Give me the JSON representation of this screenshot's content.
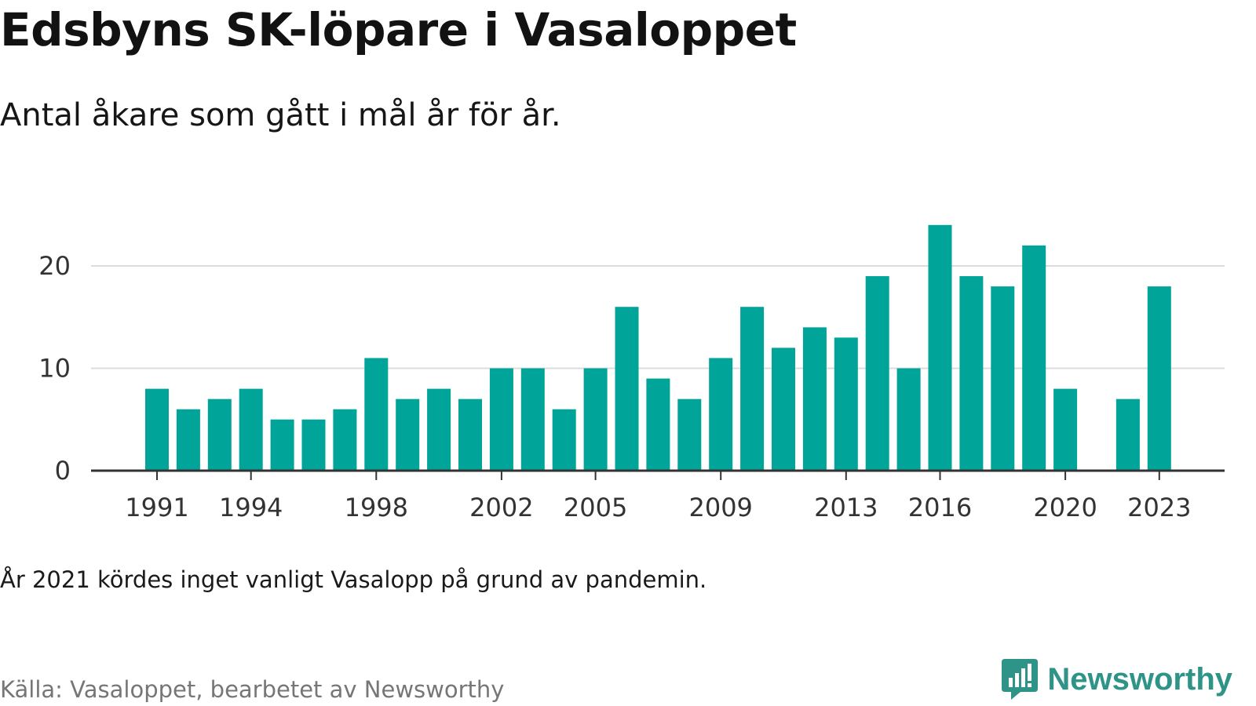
{
  "title": "Edsbyns SK-löpare i Vasaloppet",
  "subtitle": "Antal åkare som gått i mål år för år.",
  "note": "År 2021 kördes inget vanligt Vasalopp på grund av pandemin.",
  "source": "Källa: Vasaloppet, bearbetet av Newsworthy",
  "brand": {
    "name": "Newsworthy",
    "color": "#2f9488",
    "icon": "bar-chart-icon"
  },
  "chart_data": {
    "type": "bar",
    "title": "Edsbyns SK-löpare i Vasaloppet",
    "subtitle": "Antal åkare som gått i mål år för år.",
    "xlabel": "",
    "ylabel": "",
    "bar_color": "#00a499",
    "grid": true,
    "ylim": [
      0,
      24
    ],
    "yticks": [
      0,
      10,
      20
    ],
    "xticks": [
      1991,
      1994,
      1998,
      2002,
      2005,
      2009,
      2013,
      2016,
      2020,
      2023
    ],
    "x": [
      1991,
      1992,
      1993,
      1994,
      1995,
      1996,
      1997,
      1998,
      1999,
      2000,
      2001,
      2002,
      2003,
      2004,
      2005,
      2006,
      2007,
      2008,
      2009,
      2010,
      2011,
      2012,
      2013,
      2014,
      2015,
      2016,
      2017,
      2018,
      2019,
      2020,
      2021,
      2022,
      2023
    ],
    "values": [
      8,
      6,
      7,
      8,
      5,
      5,
      6,
      11,
      7,
      8,
      7,
      10,
      10,
      6,
      10,
      16,
      9,
      7,
      11,
      16,
      12,
      14,
      13,
      19,
      10,
      24,
      19,
      18,
      22,
      8,
      null,
      7,
      18
    ]
  }
}
